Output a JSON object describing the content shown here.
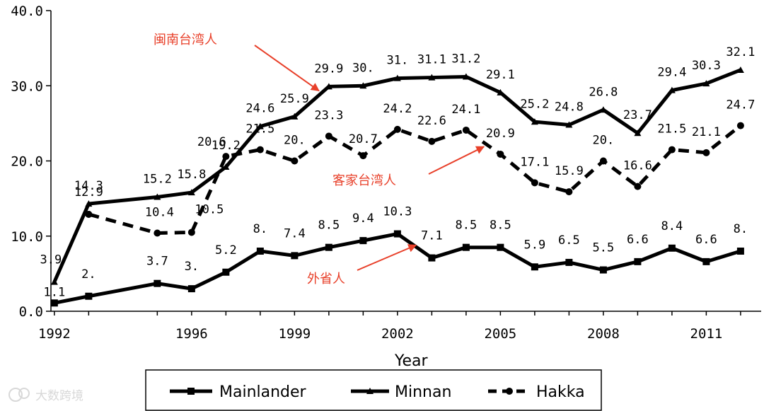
{
  "chart_data": {
    "type": "line",
    "xlabel": "Year",
    "ylabel": "",
    "ylim": [
      0,
      40
    ],
    "yticks": [
      "0.0",
      "10.0",
      "20.0",
      "30.0",
      "40.0"
    ],
    "xticks": [
      "1992",
      "1996",
      "1999",
      "2002",
      "2005",
      "2008",
      "2011"
    ],
    "x": [
      1992,
      1993,
      1995,
      1996,
      1997,
      1998,
      1999,
      2000,
      2001,
      2002,
      2003,
      2004,
      2005,
      2006,
      2007,
      2008,
      2009,
      2010,
      2011,
      2012
    ],
    "grid": false,
    "legend_position": "bottom",
    "series": [
      {
        "name": "Mainlander",
        "marker": "square",
        "dash": "solid",
        "values": [
          1.1,
          2.0,
          3.7,
          3.0,
          5.2,
          8.0,
          7.4,
          8.5,
          9.4,
          10.3,
          7.1,
          8.5,
          8.5,
          5.9,
          6.5,
          5.5,
          6.6,
          8.4,
          6.6,
          8.0
        ],
        "labels": [
          "1.1",
          "2.",
          "3.7",
          "3.",
          "5.2",
          "8.",
          "7.4",
          "8.5",
          "9.4",
          "10.3",
          "7.1",
          "8.5",
          "8.5",
          "5.9",
          "6.5",
          "5.5",
          "6.6",
          "8.4",
          "6.6",
          "8."
        ]
      },
      {
        "name": "Minnan",
        "marker": "triangle",
        "dash": "solid",
        "values": [
          3.9,
          14.3,
          15.2,
          15.8,
          19.2,
          24.6,
          25.9,
          29.9,
          30.0,
          31.0,
          31.1,
          31.2,
          29.1,
          25.2,
          24.8,
          26.8,
          23.7,
          29.4,
          30.3,
          32.1
        ],
        "labels": [
          "3.9",
          "14.3",
          "15.2",
          "15.8",
          "19.2",
          "24.6",
          "25.9",
          "29.9",
          "30.",
          "31.",
          "31.1",
          "31.2",
          "29.1",
          "25.2",
          "24.8",
          "26.8",
          "23.7",
          "29.4",
          "30.3",
          "32.1"
        ]
      },
      {
        "name": "Hakka",
        "marker": "circle",
        "dash": "dashed",
        "values": [
          null,
          12.9,
          10.4,
          10.5,
          20.6,
          21.5,
          20.0,
          23.3,
          20.7,
          24.2,
          22.6,
          24.1,
          20.9,
          17.1,
          15.9,
          20.0,
          16.6,
          21.5,
          21.1,
          24.7
        ],
        "labels": [
          null,
          "12.9",
          "10.4",
          "10.5",
          "20.6",
          "21.5",
          "20.",
          "23.3",
          "20.7",
          "24.2",
          "22.6",
          "24.1",
          "20.9",
          "17.1",
          "15.9",
          "20.",
          "16.6",
          "21.5",
          "21.1",
          "24.7"
        ]
      }
    ],
    "annotations": [
      {
        "text": "闽南台湾人",
        "color": "#e8402a"
      },
      {
        "text": "客家台湾人",
        "color": "#e8402a"
      },
      {
        "text": "外省人",
        "color": "#e8402a"
      }
    ]
  },
  "watermark": {
    "text": "大数跨境"
  }
}
